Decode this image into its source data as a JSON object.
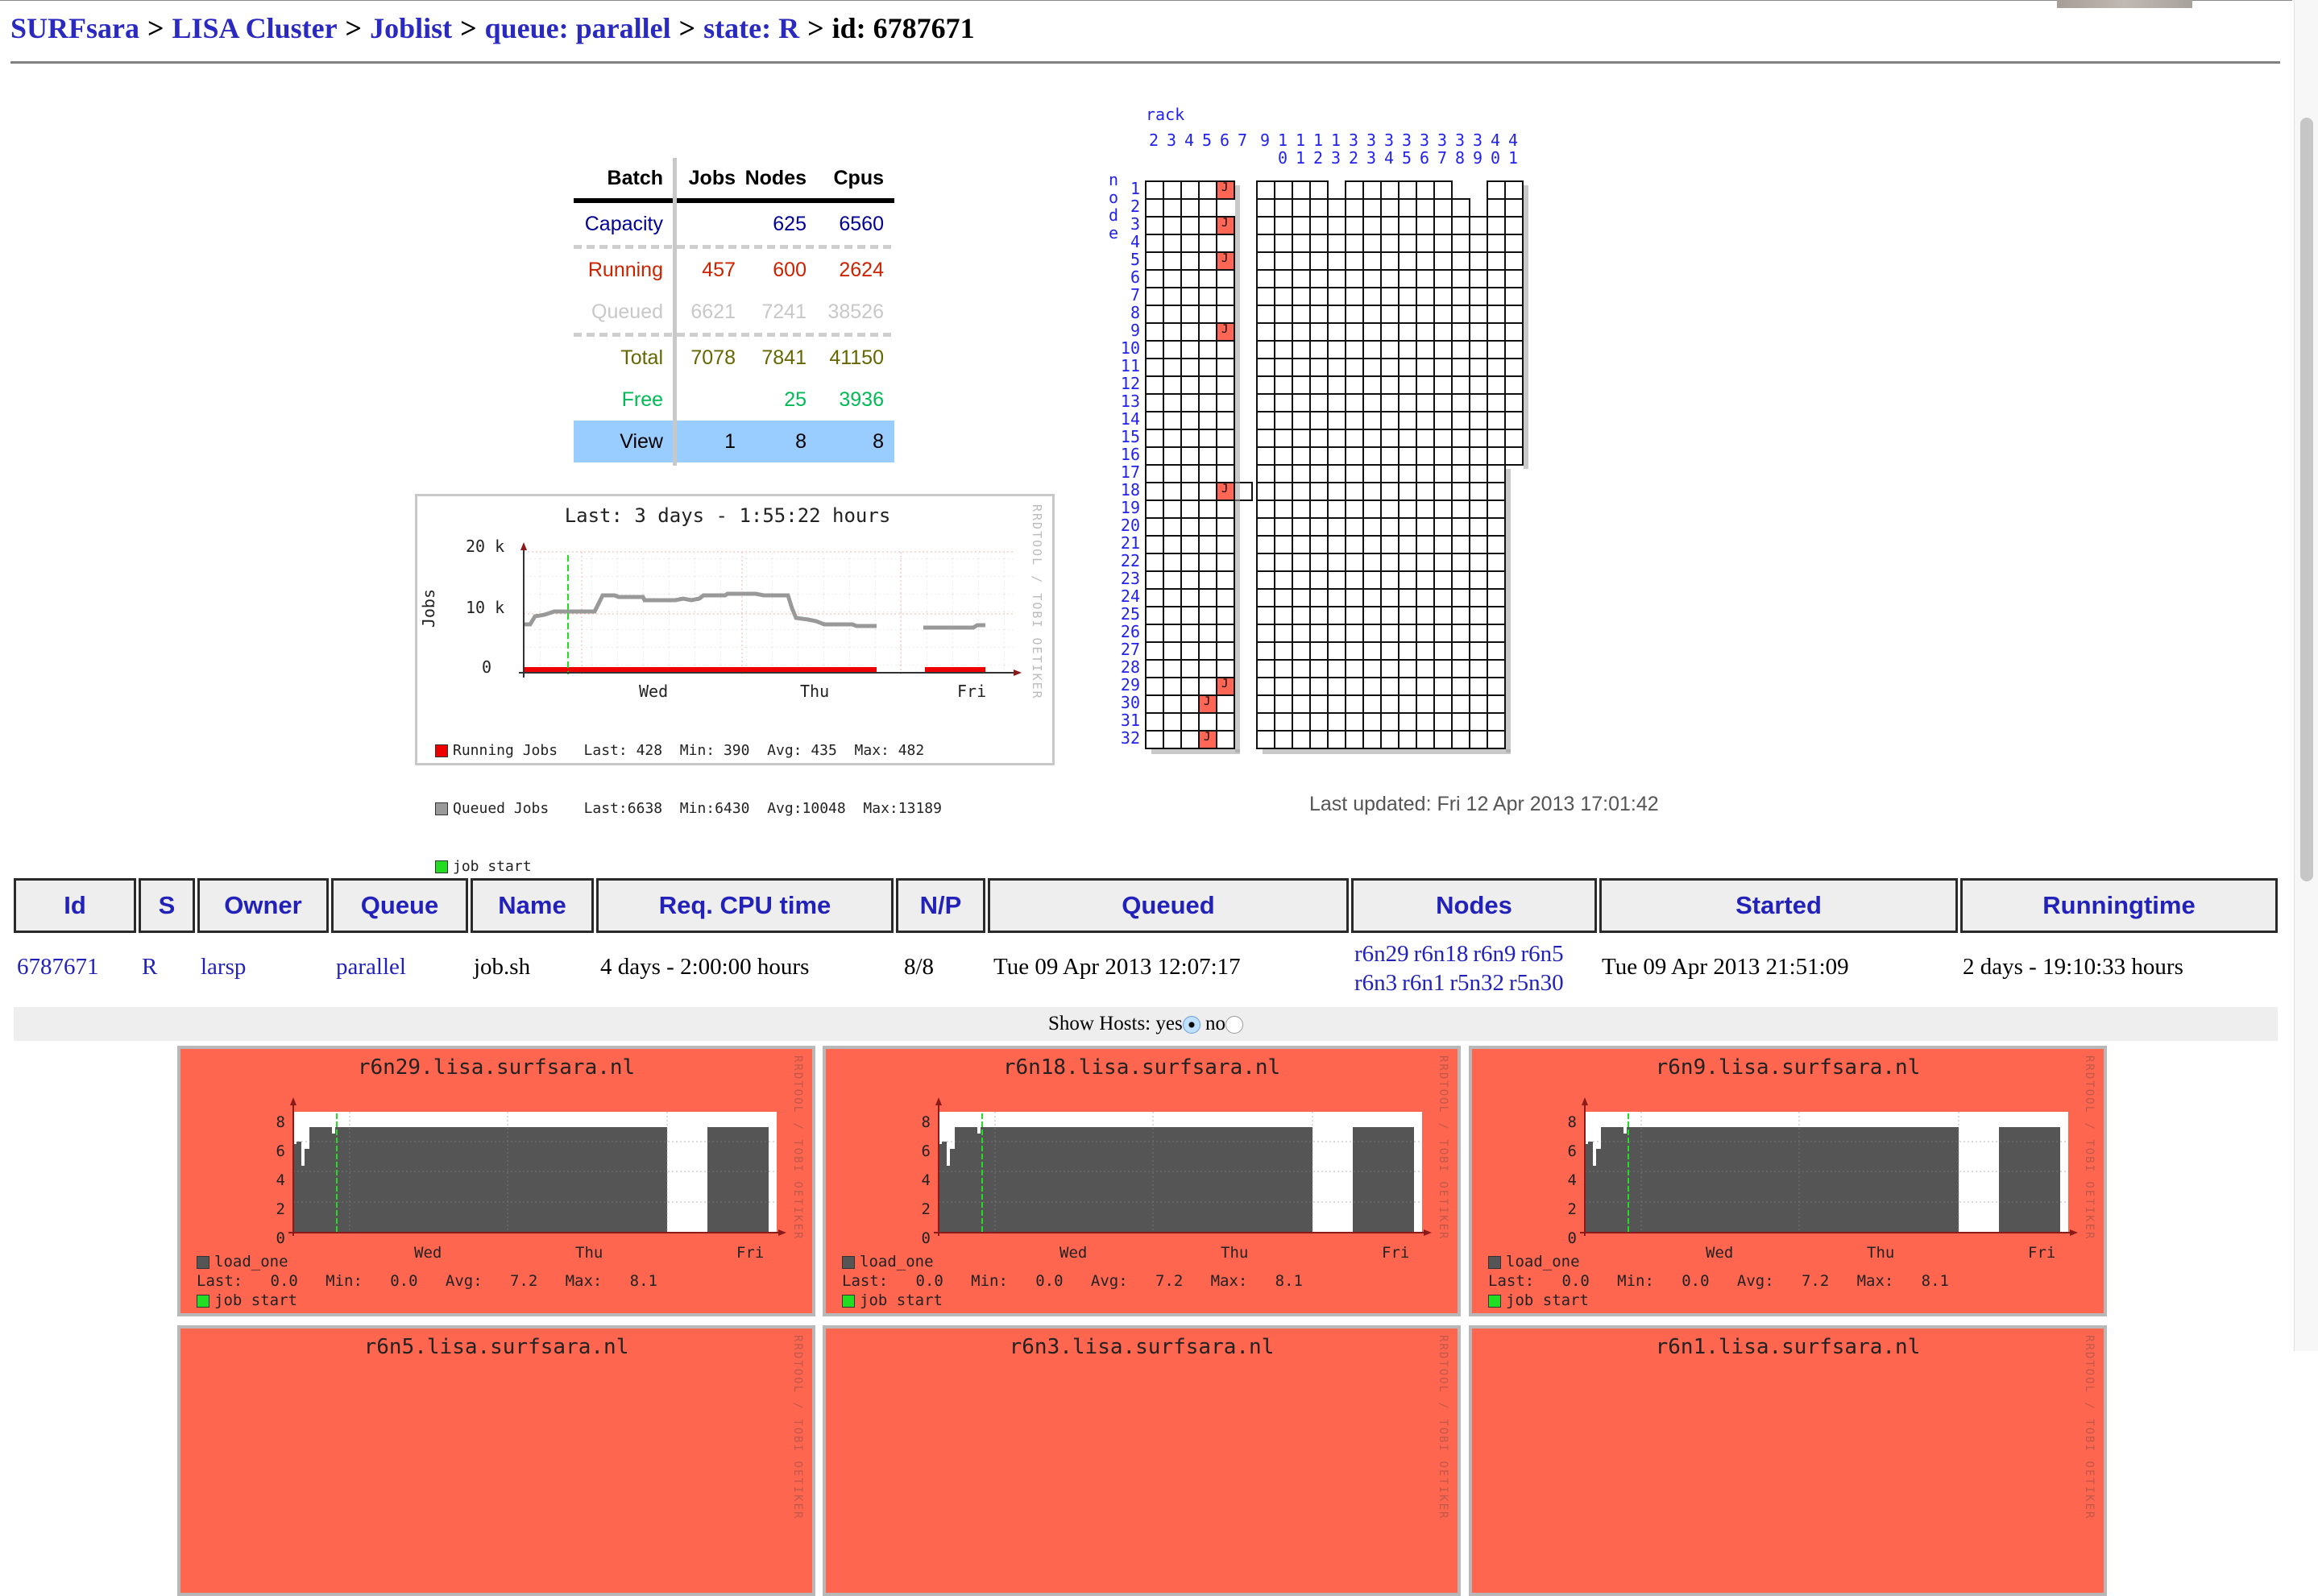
{
  "breadcrumb": {
    "items": [
      "SURFsara",
      "LISA Cluster",
      "Joblist",
      "queue: parallel",
      "state: R"
    ],
    "current": "id: 6787671",
    "separator": ">"
  },
  "batch_table": {
    "headers": [
      "Batch",
      "Jobs",
      "Nodes",
      "Cpus"
    ],
    "rows": [
      {
        "label": "Capacity",
        "jobs": "",
        "nodes": "625",
        "cpus": "6560",
        "color": "#000099"
      },
      {
        "label": "Running",
        "jobs": "457",
        "nodes": "600",
        "cpus": "2624",
        "color": "#cc2200"
      },
      {
        "label": "Queued",
        "jobs": "6621",
        "nodes": "7241",
        "cpus": "38526",
        "color": "#c8c8c8"
      },
      {
        "label": "Total",
        "jobs": "7078",
        "nodes": "7841",
        "cpus": "41150",
        "color": "#666600"
      },
      {
        "label": "Free",
        "jobs": "",
        "nodes": "25",
        "cpus": "3936",
        "color": "#00bb55"
      },
      {
        "label": "View",
        "jobs": "1",
        "nodes": "8",
        "cpus": "8",
        "color": "#000000",
        "bg": "#99ccff"
      }
    ]
  },
  "jobs_graph": {
    "title": "Last: 3 days - 1:55:22 hours",
    "watermark": "RRDTOOL / TOBI OETIKER",
    "ylabel": "Jobs",
    "yticks": [
      "20 k",
      "10 k",
      "0"
    ],
    "xticks": [
      "Wed",
      "Thu",
      "Fri"
    ],
    "legend": [
      {
        "name": "Running Jobs",
        "color": "#ee0000",
        "last": "428",
        "min": "390",
        "avg": "435",
        "max": "482"
      },
      {
        "name": "Queued Jobs",
        "color": "#999999",
        "last": "6638",
        "min": "6430",
        "avg": "10048",
        "max": "13189"
      },
      {
        "name": "job start",
        "color": "#22dd22"
      }
    ]
  },
  "rack_map": {
    "rack_label": "rack",
    "node_label": "node",
    "racks": [
      "2",
      "3",
      "4",
      "5",
      "6",
      "7",
      "9",
      "10",
      "11",
      "12",
      "13",
      "32",
      "33",
      "34",
      "35",
      "36",
      "37",
      "38",
      "39",
      "40",
      "41"
    ],
    "nodes": 32,
    "job_nodes": [
      "r6n1",
      "r6n3",
      "r6n5",
      "r6n9",
      "r6n18",
      "r6n29",
      "r5n30",
      "r5n32"
    ],
    "job_marker": "J"
  },
  "last_updated": "Last updated: Fri 12 Apr 2013 17:01:42",
  "job_table": {
    "headers": [
      "Id",
      "S",
      "Owner",
      "Queue",
      "Name",
      "Req. CPU time",
      "N/P",
      "Queued",
      "Nodes",
      "Started",
      "Runningtime"
    ],
    "row": {
      "id": "6787671",
      "state": "R",
      "owner": "larsp",
      "queue": "parallel",
      "name": "job.sh",
      "req_cpu_time": "4 days - 2:00:00 hours",
      "np": "8/8",
      "queued": "Tue 09 Apr 2013 12:07:17",
      "nodes": [
        "r6n29",
        "r6n18",
        "r6n9",
        "r6n5",
        "r6n3",
        "r6n1",
        "r5n32",
        "r5n30"
      ],
      "started": "Tue 09 Apr 2013 21:51:09",
      "runningtime": "2 days - 19:10:33 hours"
    }
  },
  "show_hosts": {
    "label": "Show Hosts:",
    "options": [
      "yes",
      "no"
    ],
    "selected": "yes"
  },
  "host_graphs": [
    {
      "host": "r6n29.lisa.surfsara.nl",
      "metric": "load_one",
      "last": "0.0",
      "min": "0.0",
      "avg": "7.2",
      "max": "8.1"
    },
    {
      "host": "r6n18.lisa.surfsara.nl",
      "metric": "load_one",
      "last": "0.0",
      "min": "0.0",
      "avg": "7.2",
      "max": "8.1"
    },
    {
      "host": "r6n9.lisa.surfsara.nl",
      "metric": "load_one",
      "last": "0.0",
      "min": "0.0",
      "avg": "7.2",
      "max": "8.1"
    },
    {
      "host": "r6n5.lisa.surfsara.nl"
    },
    {
      "host": "r6n3.lisa.surfsara.nl"
    },
    {
      "host": "r6n1.lisa.surfsara.nl"
    }
  ],
  "host_graph_common": {
    "yticks": [
      "8",
      "6",
      "4",
      "2",
      "0"
    ],
    "xticks": [
      "Wed",
      "Thu",
      "Fri"
    ],
    "job_start_label": "job start",
    "watermark": "RRDTOOL / TOBI OETIKER",
    "metric_color": "#555555",
    "background": "#ff6650"
  }
}
